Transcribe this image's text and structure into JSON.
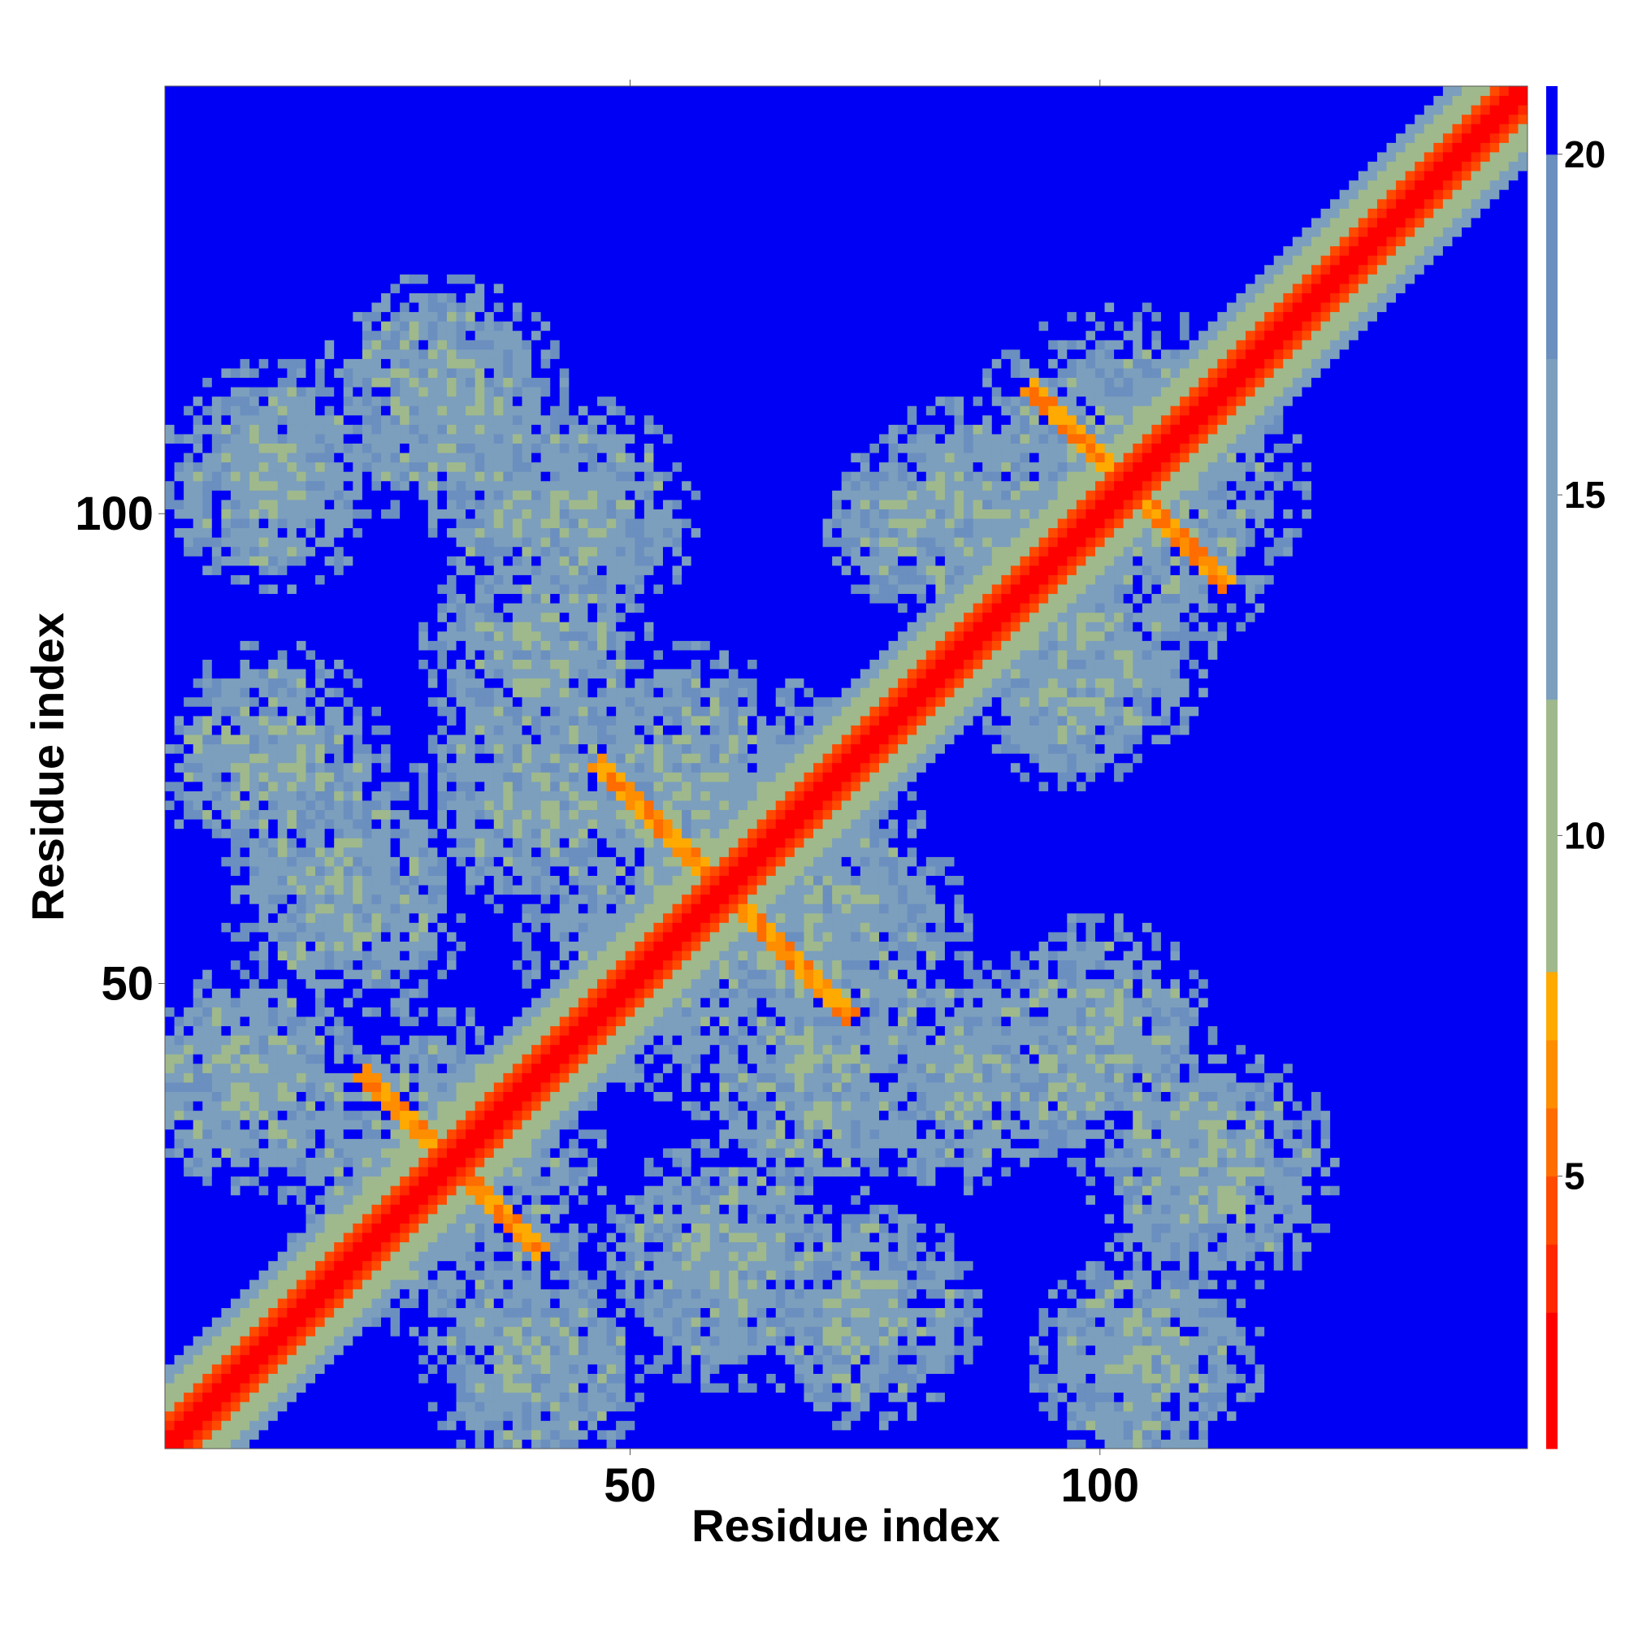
{
  "chart_data": {
    "type": "heatmap",
    "title": "",
    "xlabel": "Residue index",
    "ylabel": "Residue index",
    "n_residues": 145,
    "xlim": [
      1,
      145
    ],
    "ylim": [
      1,
      145
    ],
    "x_ticks": [
      50,
      100
    ],
    "y_ticks": [
      50,
      100
    ],
    "x_tick_labels": [
      "50",
      "100"
    ],
    "y_tick_labels": [
      "50",
      "100"
    ],
    "colorbar": {
      "ticks": [
        5,
        10,
        15,
        20
      ],
      "tick_labels": [
        "5",
        "10",
        "15",
        "20"
      ],
      "range": [
        1,
        21
      ],
      "bins": [
        {
          "max": 3,
          "color": "#ff0000"
        },
        {
          "max": 4,
          "color": "#ff2800"
        },
        {
          "max": 5,
          "color": "#ff4a00"
        },
        {
          "max": 6,
          "color": "#ff6c00"
        },
        {
          "max": 7,
          "color": "#ff8d00"
        },
        {
          "max": 8,
          "color": "#ffaa00"
        },
        {
          "max": 12,
          "color": "#9fb98c"
        },
        {
          "max": 17,
          "color": "#7c9fbd"
        },
        {
          "max": 20,
          "color": "#6b8fbf"
        },
        {
          "max": 99,
          "color": "#0000f5"
        }
      ]
    },
    "structure": {
      "diagonal": "distance ~ 0-4 along main diagonal (i=j)",
      "antiparallel_contacts": [
        {
          "center": [
            30,
            30
          ],
          "note": "strand pair near residues 25-38"
        },
        {
          "center": [
            60,
            60
          ],
          "note": "strand pair near residues 50-72"
        },
        {
          "center": [
            103,
            103
          ],
          "note": "strand pair near residues 100-120"
        }
      ],
      "off_diagonal_contacts": [
        {
          "x_range": [
            5,
            15
          ],
          "y_range": [
            70,
            78
          ]
        },
        {
          "x_range": [
            5,
            15
          ],
          "y_range": [
            100,
            110
          ]
        },
        {
          "x_range": [
            35,
            42
          ],
          "y_range": [
            98,
            104
          ]
        },
        {
          "x_range": [
            70,
            80
          ],
          "y_range": [
            10,
            20
          ]
        },
        {
          "x_range": [
            95,
            102
          ],
          "y_range": [
            38,
            44
          ]
        },
        {
          "x_range": [
            100,
            110
          ],
          "y_range": [
            6,
            14
          ]
        },
        {
          "x_range": [
            78,
            80
          ],
          "y_range": [
            97,
            101
          ]
        },
        {
          "x_range": [
            95,
            98
          ],
          "y_range": [
            78,
            82
          ]
        }
      ]
    }
  }
}
